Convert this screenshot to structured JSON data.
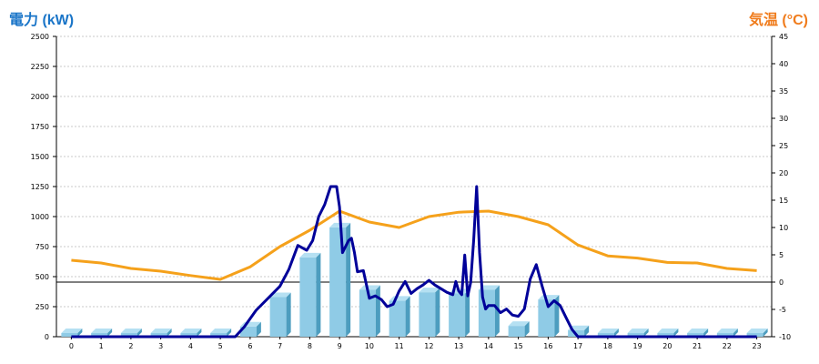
{
  "chart_data": {
    "type": "bar",
    "left_axis_title": "電力 (kW)",
    "right_axis_title": "気温 (°C)",
    "categories": [
      "0",
      "1",
      "2",
      "3",
      "4",
      "5",
      "6",
      "7",
      "8",
      "9",
      "10",
      "11",
      "12",
      "13",
      "14",
      "15",
      "16",
      "17",
      "18",
      "19",
      "20",
      "21",
      "22",
      "23"
    ],
    "ylim_left": [
      0,
      2500
    ],
    "yticks_left": [
      "0",
      "250",
      "500",
      "750",
      "1000",
      "1250",
      "1500",
      "1750",
      "2000",
      "2250",
      "2500"
    ],
    "ylim_right": [
      -10,
      45
    ],
    "yticks_right": [
      "-10",
      "-5",
      "0",
      "5",
      "10",
      "15",
      "20",
      "25",
      "30",
      "35",
      "40",
      "45"
    ],
    "grid": true,
    "series": [
      {
        "kind": "bar",
        "axis": "left",
        "values": [
          0,
          0,
          0,
          0,
          0,
          0,
          85,
          330,
          660,
          910,
          390,
          300,
          370,
          360,
          390,
          90,
          310,
          55,
          0,
          0,
          0,
          0,
          0,
          0
        ]
      },
      {
        "kind": "line",
        "axis": "left",
        "x": [
          0,
          5.5,
          5.8,
          6.2,
          6.6,
          7.0,
          7.3,
          7.6,
          7.9,
          8.1,
          8.3,
          8.5,
          8.7,
          8.9,
          9.0,
          9.1,
          9.3,
          9.4,
          9.5,
          9.6,
          9.8,
          10.0,
          10.2,
          10.4,
          10.6,
          10.8,
          11.0,
          11.2,
          11.4,
          11.6,
          11.8,
          12.0,
          12.2,
          12.4,
          12.6,
          12.8,
          12.9,
          13.0,
          13.1,
          13.2,
          13.3,
          13.4,
          13.5,
          13.6,
          13.7,
          13.8,
          13.9,
          14.0,
          14.2,
          14.4,
          14.6,
          14.8,
          15.0,
          15.2,
          15.4,
          15.6,
          15.8,
          16.0,
          16.2,
          16.4,
          16.6,
          16.8,
          17.0,
          17.5,
          23.0
        ],
        "values": [
          0,
          0,
          80,
          220,
          320,
          420,
          560,
          760,
          720,
          800,
          1000,
          1100,
          1250,
          1250,
          1080,
          700,
          800,
          820,
          700,
          540,
          550,
          320,
          340,
          310,
          250,
          270,
          380,
          460,
          360,
          400,
          430,
          470,
          430,
          400,
          370,
          350,
          460,
          380,
          350,
          680,
          340,
          450,
          800,
          1250,
          700,
          330,
          230,
          260,
          260,
          200,
          230,
          180,
          170,
          230,
          480,
          600,
          420,
          250,
          300,
          260,
          160,
          60,
          0,
          0,
          0
        ]
      },
      {
        "kind": "line",
        "axis": "right",
        "x": [
          0,
          1,
          2,
          3,
          4,
          5,
          6,
          7,
          8,
          9,
          10,
          11,
          12,
          13,
          14,
          15,
          16,
          17,
          18,
          19,
          20,
          21,
          22,
          23
        ],
        "values": [
          4,
          3.5,
          2.5,
          2,
          1.2,
          0.5,
          2.8,
          6.5,
          9.5,
          13,
          11,
          10,
          12,
          12.8,
          13,
          12,
          10.5,
          6.8,
          4.8,
          4.4,
          3.6,
          3.5,
          2.5,
          2.1
        ]
      }
    ],
    "colors": {
      "left_title": "#1a75c8",
      "right_title": "#f07c1c",
      "bar_front": "#8fcbe6",
      "bar_side": "#4d9dbf",
      "bar_top": "#b5e0f2",
      "power_line": "#000099",
      "temp_line": "#f5a11b",
      "grid": "#c8c8c8",
      "zero_line": "#000000"
    }
  }
}
